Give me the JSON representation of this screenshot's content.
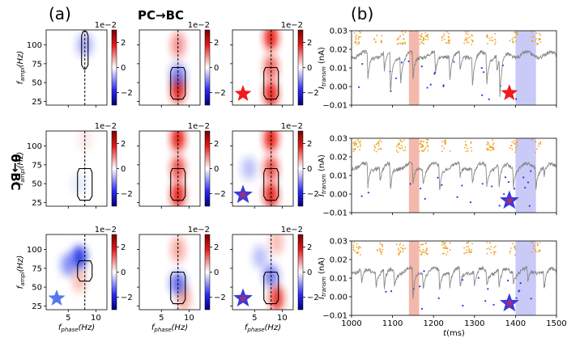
{
  "figure": {
    "label_a": "(a)",
    "label_b": "(b)",
    "col_title_pc_bc": "PC→BC",
    "row_title_theta_bc": "θ→BC",
    "scale_exponent": "1e−2"
  },
  "chart_data": [
    {
      "type": "heatmap",
      "panel": "a",
      "description_grid": "3x3 comodulogram heatmaps",
      "xlabel": "f_phase(Hz)",
      "ylabel": "f_ampl(Hz)",
      "xlim": [
        1,
        12
      ],
      "ylim": [
        20,
        120
      ],
      "xticks": [
        5,
        10
      ],
      "yticks": [
        25,
        50,
        75,
        100
      ],
      "dashed_line_x": 8,
      "colorbar": {
        "ticks": [
          2,
          0,
          -2
        ],
        "exponent": "1e−2",
        "colormap": "bwr",
        "range": [
          -3,
          3
        ]
      },
      "cells": [
        {
          "row": 0,
          "col": 0,
          "hot": [],
          "cold": [
            {
              "x": 8,
              "y": 100,
              "amp": -0.4
            }
          ],
          "contour": "narrow-tall",
          "marker": null
        },
        {
          "row": 0,
          "col": 1,
          "hot": [
            {
              "x": 8,
              "y": 40,
              "amp": 1.0
            },
            {
              "x": 8,
              "y": 100,
              "amp": 0.5
            }
          ],
          "cold": [
            {
              "x": 8,
              "y": 60,
              "amp": -0.6
            }
          ],
          "contour": "mid",
          "marker": null
        },
        {
          "row": 0,
          "col": 2,
          "hot": [
            {
              "x": 8,
              "y": 110,
              "amp": 1.0
            },
            {
              "x": 8,
              "y": 70,
              "amp": 0.7
            },
            {
              "x": 8,
              "y": 35,
              "amp": 1.0
            }
          ],
          "cold": [],
          "contour": "mid",
          "marker": "red-star"
        },
        {
          "row": 1,
          "col": 0,
          "hot": [
            {
              "x": 8,
              "y": 110,
              "amp": 0.1
            }
          ],
          "cold": [
            {
              "x": 7,
              "y": 50,
              "amp": -0.1
            }
          ],
          "contour": "mid",
          "marker": null
        },
        {
          "row": 1,
          "col": 1,
          "hot": [
            {
              "x": 8,
              "y": 110,
              "amp": 1.0
            },
            {
              "x": 8,
              "y": 70,
              "amp": 0.8
            },
            {
              "x": 8,
              "y": 35,
              "amp": 1.0
            }
          ],
          "cold": [],
          "contour": "mid",
          "marker": null
        },
        {
          "row": 1,
          "col": 2,
          "hot": [
            {
              "x": 8,
              "y": 110,
              "amp": 1.0
            },
            {
              "x": 8,
              "y": 70,
              "amp": 0.8
            },
            {
              "x": 8,
              "y": 35,
              "amp": 1.0
            }
          ],
          "cold": [
            {
              "x": 4,
              "y": 70,
              "amp": -0.3
            }
          ],
          "contour": "mid",
          "marker": "mixed-star"
        },
        {
          "row": 2,
          "col": 0,
          "hot": [
            {
              "x": 7,
              "y": 60,
              "amp": 0.3
            }
          ],
          "cold": [
            {
              "x": 7,
              "y": 90,
              "amp": -0.9
            },
            {
              "x": 5,
              "y": 80,
              "amp": -0.5
            }
          ],
          "contour": "mid-high",
          "marker": "blue-star"
        },
        {
          "row": 2,
          "col": 1,
          "hot": [
            {
              "x": 8,
              "y": 100,
              "amp": 0.4
            },
            {
              "x": 9,
              "y": 35,
              "amp": 0.4
            }
          ],
          "cold": [
            {
              "x": 8,
              "y": 55,
              "amp": -0.7
            }
          ],
          "contour": "mid",
          "marker": null
        },
        {
          "row": 2,
          "col": 2,
          "hot": [
            {
              "x": 9,
              "y": 110,
              "amp": 0.3
            },
            {
              "x": 9,
              "y": 35,
              "amp": 0.9
            }
          ],
          "cold": [
            {
              "x": 8,
              "y": 65,
              "amp": -0.6
            },
            {
              "x": 6,
              "y": 90,
              "amp": -0.3
            }
          ],
          "contour": "mid",
          "marker": "mixed-star"
        }
      ]
    },
    {
      "type": "line",
      "panel": "b",
      "xlabel": "t(ms)",
      "ylabel": "I_transm (nA)",
      "xlim": [
        1000,
        1500
      ],
      "ylim": [
        -0.01,
        0.03
      ],
      "xticks": [
        1000,
        1100,
        1200,
        1300,
        1400,
        1500
      ],
      "yticks": [
        -0.01,
        0.0,
        0.01,
        0.02,
        0.03
      ],
      "ytick_labels": [
        "−0.01",
        "0.00",
        "0.01",
        "0.02",
        "0.03"
      ],
      "shaded_regions": [
        {
          "from": 1140,
          "to": 1165,
          "color": "#f0a090"
        },
        {
          "from": 1400,
          "to": 1450,
          "color": "#b8b8f6"
        }
      ],
      "markers": [
        "red-star",
        "mixed-star",
        "mixed-star"
      ],
      "traces": [
        {
          "panel": 0,
          "baseline": 0.017,
          "dips": [
            [
              1040,
              0.004
            ],
            [
              1080,
              0.008
            ],
            [
              1095,
              -0.004
            ],
            [
              1120,
              0.003
            ],
            [
              1150,
              0.002
            ],
            [
              1205,
              0.006
            ],
            [
              1240,
              0.005
            ],
            [
              1265,
              0.008
            ],
            [
              1295,
              0.001
            ],
            [
              1330,
              0.002
            ],
            [
              1355,
              0.008
            ],
            [
              1362,
              -0.004
            ]
          ]
        },
        {
          "panel": 1,
          "baseline": 0.015,
          "dips": [
            [
              1040,
              0.003
            ],
            [
              1070,
              0.007
            ],
            [
              1095,
              0.001
            ],
            [
              1150,
              0.004
            ],
            [
              1175,
              0.006
            ],
            [
              1215,
              0.002
            ],
            [
              1265,
              0.008
            ],
            [
              1295,
              0.006
            ],
            [
              1330,
              0.004
            ],
            [
              1360,
              0.003
            ],
            [
              1395,
              0.005
            ],
            [
              1450,
              0.004
            ],
            [
              1470,
              0.01
            ]
          ]
        },
        {
          "panel": 2,
          "baseline": 0.014,
          "dips": [
            [
              1025,
              0.006
            ],
            [
              1060,
              0.007
            ],
            [
              1080,
              0.004
            ],
            [
              1105,
              0.006
            ],
            [
              1150,
              -0.002
            ],
            [
              1175,
              0.006
            ],
            [
              1215,
              0.004
            ],
            [
              1240,
              0.006
            ],
            [
              1265,
              0.004
            ],
            [
              1300,
              0.006
            ],
            [
              1330,
              0.006
            ],
            [
              1360,
              0.004
            ],
            [
              1395,
              0.008
            ],
            [
              1430,
              0.006
            ],
            [
              1470,
              0.005
            ]
          ]
        }
      ]
    }
  ]
}
